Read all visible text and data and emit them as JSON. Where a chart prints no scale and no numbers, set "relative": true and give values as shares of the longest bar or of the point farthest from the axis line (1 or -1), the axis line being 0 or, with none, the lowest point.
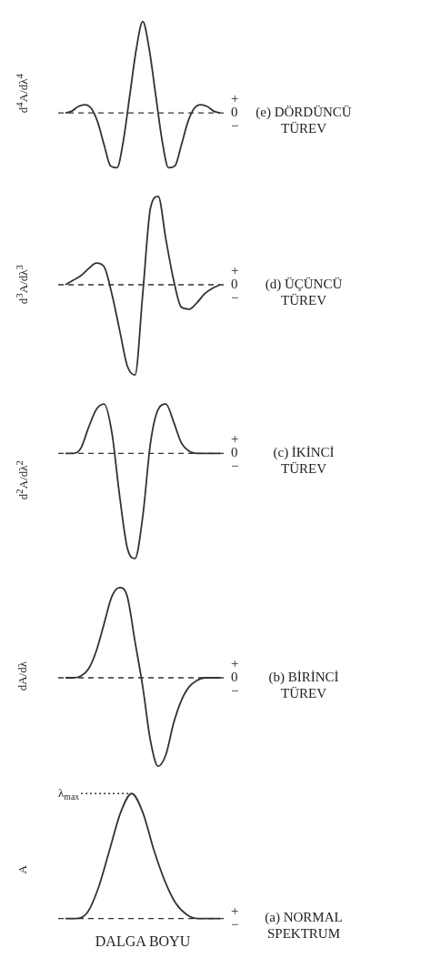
{
  "chart_data": [
    {
      "type": "line",
      "ylabel": "d$^{4}$A/dλ$^{4}$",
      "relative": true,
      "color": "#333333",
      "marker": "none",
      "categories": [
        null,
        null,
        null,
        null,
        null,
        null,
        null,
        null,
        null,
        null,
        null,
        null,
        null,
        null,
        null,
        null,
        null,
        null,
        null,
        null,
        null,
        null,
        null,
        null,
        null
      ],
      "values": [
        0,
        0.02,
        0.07,
        0.09,
        0.05,
        -0.1,
        -0.35,
        -0.58,
        -0.6,
        -0.3,
        0.2,
        0.7,
        1,
        0.7,
        0.2,
        -0.3,
        -0.6,
        -0.58,
        -0.35,
        -0.1,
        0.05,
        0.09,
        0.07,
        0.02,
        0
      ],
      "ref_lines": [
        {
          "axis": "y",
          "value": 0,
          "line_style": "dashed"
        }
      ],
      "annotations": [
        "(e) DÖRDÜNCÜ TÜREV",
        "+",
        "0",
        "−"
      ]
    },
    {
      "type": "line",
      "ylabel": "d$^{3}$A/dλ$^{3}$",
      "relative": true,
      "color": "#333333",
      "marker": "none",
      "categories": [
        null,
        null,
        null,
        null,
        null,
        null,
        null,
        null,
        null,
        null,
        null,
        null,
        null,
        null,
        null,
        null,
        null,
        null,
        null,
        null,
        null
      ],
      "values": [
        0,
        0.05,
        0.1,
        0.18,
        0.24,
        0.2,
        -0.1,
        -0.5,
        -0.9,
        -1,
        -0.1,
        0.85,
        0.98,
        0.5,
        0.05,
        -0.25,
        -0.27,
        -0.2,
        -0.1,
        -0.04,
        0
      ],
      "ref_lines": [
        {
          "axis": "y",
          "value": 0,
          "line_style": "dashed"
        }
      ],
      "annotations": [
        "(d) ÜÇÜNCÜ TÜREV",
        "+",
        "0",
        "−"
      ]
    },
    {
      "type": "line",
      "ylabel": "d$^{2}$A/dλ$^{2}$",
      "relative": true,
      "color": "#333333",
      "marker": "none",
      "categories": [
        null,
        null,
        null,
        null,
        null,
        null,
        null,
        null,
        null,
        null,
        null,
        null,
        null,
        null,
        null,
        null,
        null,
        null,
        null,
        null,
        null
      ],
      "values": [
        0,
        0,
        0.05,
        0.25,
        0.42,
        0.47,
        0.2,
        -0.4,
        -0.9,
        -1,
        -0.6,
        0.1,
        0.42,
        0.47,
        0.3,
        0.1,
        0.02,
        0,
        0,
        0,
        0
      ],
      "ref_lines": [
        {
          "axis": "y",
          "value": 0,
          "line_style": "dashed"
        }
      ],
      "annotations": [
        "(c) İKİNCİ TÜREV",
        "+",
        "0",
        "−"
      ]
    },
    {
      "type": "line",
      "ylabel": "dA/dλ",
      "relative": true,
      "color": "#333333",
      "marker": "none",
      "categories": [
        null,
        null,
        null,
        null,
        null,
        null,
        null,
        null,
        null,
        null,
        null,
        null,
        null,
        null,
        null,
        null,
        null,
        null,
        null,
        null,
        null
      ],
      "values": [
        0,
        0,
        0.02,
        0.1,
        0.3,
        0.6,
        0.9,
        1,
        0.9,
        0.4,
        -0.1,
        -0.7,
        -0.98,
        -0.85,
        -0.5,
        -0.25,
        -0.1,
        -0.03,
        0,
        0,
        0
      ],
      "ref_lines": [
        {
          "axis": "y",
          "value": 0,
          "line_style": "dashed"
        }
      ],
      "annotations": [
        "(b) BİRİNCİ TÜREV",
        "+",
        "0",
        "−"
      ]
    },
    {
      "type": "line",
      "ylabel": "A",
      "xlabel": "DALGA BOYU",
      "relative": true,
      "color": "#333333",
      "marker": "none",
      "categories": [
        null,
        null,
        null,
        null,
        null,
        null,
        null,
        null,
        null,
        null,
        null,
        null,
        null,
        null,
        null
      ],
      "values": [
        0,
        0,
        0.05,
        0.25,
        0.55,
        0.85,
        1,
        0.85,
        0.55,
        0.3,
        0.12,
        0.03,
        0,
        0,
        0
      ],
      "ref_lines": [
        {
          "axis": "y",
          "value": 0,
          "line_style": "dashed"
        },
        {
          "axis": "y",
          "value": 1,
          "label": "λ$_{max}$",
          "line_style": "dotted"
        }
      ],
      "annotations": [
        "(a) NORMAL SPEKTRUM",
        "+",
        "−"
      ]
    }
  ]
}
